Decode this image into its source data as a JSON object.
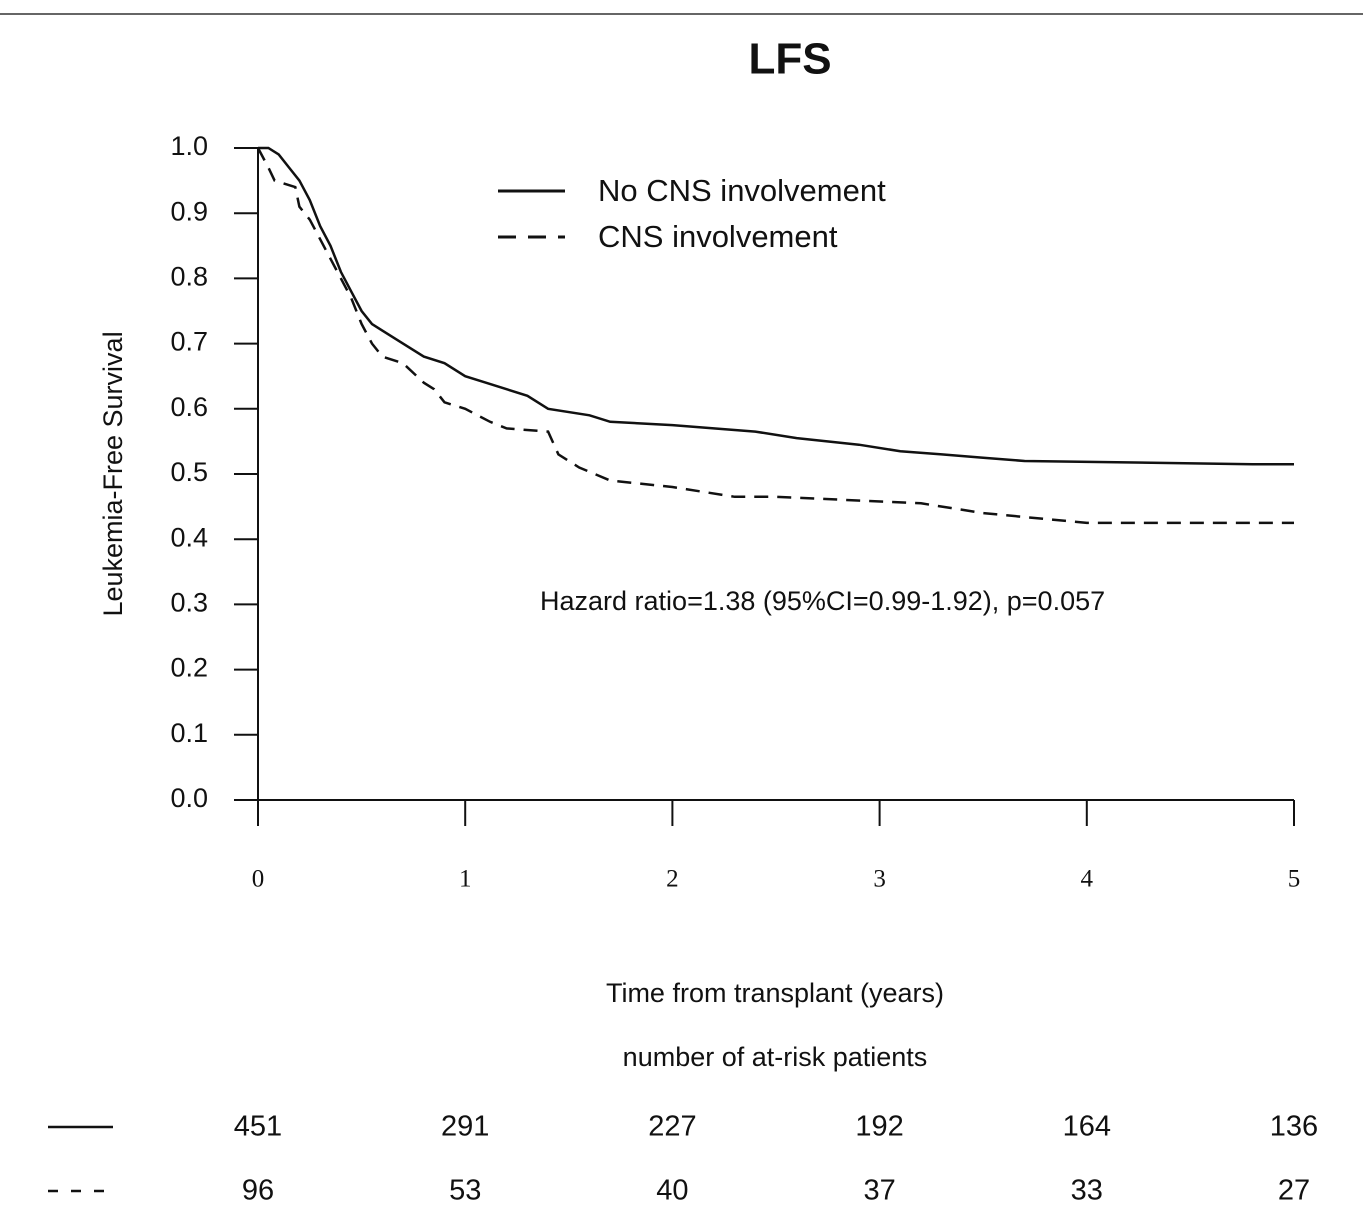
{
  "chart_data": {
    "type": "line",
    "title": "LFS",
    "x_label": "Time from transplant (years)",
    "y_label": "Leukemia-Free Survival",
    "annotation": "Hazard ratio=1.38 (95%CI=0.99-1.92), p=0.057",
    "xlim": [
      0,
      5
    ],
    "xticks": [
      0,
      1,
      2,
      3,
      4,
      5
    ],
    "ylim": [
      0,
      1
    ],
    "yticks": [
      {
        "value": 0,
        "label": "0.0"
      },
      0.1,
      0.2,
      0.3,
      0.4,
      0.5,
      0.6,
      0.7,
      0.8,
      0.9,
      {
        "value": 1,
        "label": "1.0"
      }
    ],
    "series": [
      {
        "name": "No CNS involvement",
        "color": "#111111",
        "dashed": false,
        "x": [
          0,
          0.05,
          0.1,
          0.15,
          0.2,
          0.25,
          0.3,
          0.35,
          0.4,
          0.45,
          0.5,
          0.55,
          0.6,
          0.7,
          0.8,
          0.9,
          1.0,
          1.1,
          1.2,
          1.3,
          1.4,
          1.6,
          1.7,
          2.0,
          2.2,
          2.4,
          2.6,
          2.9,
          3.1,
          3.3,
          3.5,
          3.7,
          4.8,
          5.0
        ],
        "values": [
          1.0,
          1.0,
          0.99,
          0.97,
          0.95,
          0.92,
          0.88,
          0.85,
          0.81,
          0.78,
          0.75,
          0.73,
          0.72,
          0.7,
          0.68,
          0.67,
          0.65,
          0.64,
          0.63,
          0.62,
          0.6,
          0.59,
          0.58,
          0.575,
          0.57,
          0.565,
          0.555,
          0.545,
          0.535,
          0.53,
          0.525,
          0.52,
          0.515,
          0.515
        ]
      },
      {
        "name": "CNS involvement",
        "color": "#111111",
        "dashed": true,
        "x": [
          0,
          0.05,
          0.08,
          0.18,
          0.2,
          0.25,
          0.3,
          0.35,
          0.4,
          0.45,
          0.5,
          0.55,
          0.6,
          0.7,
          0.8,
          0.85,
          0.9,
          1.0,
          1.12,
          1.2,
          1.4,
          1.45,
          1.55,
          1.7,
          2.0,
          2.3,
          2.5,
          3.2,
          3.5,
          4.0,
          5.0
        ],
        "values": [
          1.0,
          0.97,
          0.95,
          0.94,
          0.91,
          0.89,
          0.86,
          0.83,
          0.8,
          0.77,
          0.73,
          0.7,
          0.68,
          0.67,
          0.64,
          0.63,
          0.61,
          0.6,
          0.58,
          0.57,
          0.565,
          0.53,
          0.51,
          0.49,
          0.48,
          0.465,
          0.465,
          0.455,
          0.44,
          0.425,
          0.425
        ]
      }
    ],
    "at_risk": {
      "title": "number of at-risk patients",
      "rows": [
        {
          "dashed": false,
          "values": [
            451,
            291,
            227,
            192,
            164,
            136
          ]
        },
        {
          "dashed": true,
          "values": [
            96,
            53,
            40,
            37,
            33,
            27
          ]
        }
      ]
    }
  }
}
